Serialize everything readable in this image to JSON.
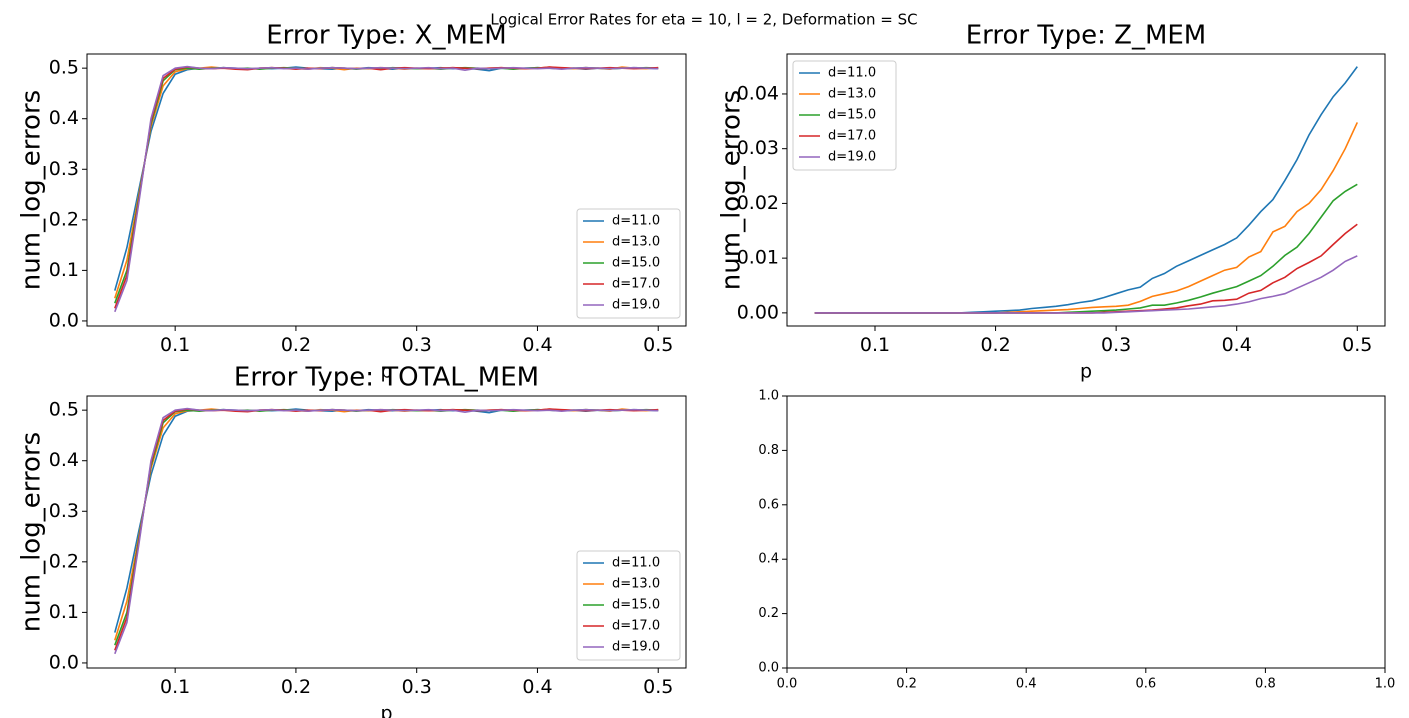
{
  "title": "Logical Error Rates for eta = 10, l = 2, Deformation = SC",
  "chart_data": [
    {
      "type": "line",
      "title": "Error Type: X_MEM",
      "x_label": "p",
      "y_label": "num_log_errors",
      "legend": "lower right",
      "x": [
        0.05,
        0.06,
        0.07,
        0.08,
        0.09,
        0.1,
        0.11,
        0.12,
        0.13,
        0.14,
        0.15,
        0.16,
        0.17,
        0.18,
        0.19,
        0.2,
        0.21,
        0.22,
        0.23,
        0.24,
        0.25,
        0.26,
        0.27,
        0.28,
        0.29,
        0.3,
        0.31,
        0.32,
        0.33,
        0.34,
        0.35,
        0.36,
        0.37,
        0.38,
        0.39,
        0.4,
        0.41,
        0.42,
        0.43,
        0.44,
        0.45,
        0.46,
        0.47,
        0.48,
        0.49,
        0.5
      ],
      "xlim": [
        0.027,
        0.523
      ],
      "ylim": [
        -0.01,
        0.528
      ],
      "xticks": [
        0.1,
        0.2,
        0.3,
        0.4,
        0.5
      ],
      "yticks": [
        {
          "value": 0,
          "label": "0.0"
        },
        0.1,
        0.2,
        0.3,
        0.4,
        0.5
      ],
      "series": [
        {
          "name": "d=11.0",
          "color": "#1f77b4",
          "values": [
            0.06,
            0.145,
            0.26,
            0.375,
            0.45,
            0.488,
            0.497,
            0.5,
            0.499,
            0.501,
            0.5,
            0.498,
            0.5,
            0.499,
            0.5,
            0.502,
            0.5,
            0.499,
            0.498,
            0.5,
            0.499,
            0.501,
            0.5,
            0.498,
            0.5,
            0.499,
            0.5,
            0.501,
            0.499,
            0.5,
            0.498,
            0.495,
            0.5,
            0.499,
            0.5,
            0.501,
            0.5,
            0.499,
            0.5,
            0.498,
            0.5,
            0.499,
            0.5,
            0.501,
            0.5,
            0.499
          ]
        },
        {
          "name": "d=13.0",
          "color": "#ff7f0e",
          "values": [
            0.045,
            0.12,
            0.25,
            0.385,
            0.465,
            0.493,
            0.499,
            0.5,
            0.502,
            0.5,
            0.499,
            0.498,
            0.5,
            0.501,
            0.5,
            0.499,
            0.498,
            0.501,
            0.5,
            0.497,
            0.5,
            0.499,
            0.501,
            0.5,
            0.498,
            0.5,
            0.499,
            0.5,
            0.501,
            0.5,
            0.499,
            0.5,
            0.501,
            0.5,
            0.499,
            0.5,
            0.502,
            0.5,
            0.499,
            0.501,
            0.5,
            0.498,
            0.502,
            0.5,
            0.499,
            0.501
          ]
        },
        {
          "name": "d=15.0",
          "color": "#2ca02c",
          "values": [
            0.035,
            0.1,
            0.245,
            0.39,
            0.475,
            0.497,
            0.5,
            0.498,
            0.5,
            0.501,
            0.499,
            0.5,
            0.498,
            0.5,
            0.501,
            0.5,
            0.499,
            0.5,
            0.501,
            0.5,
            0.498,
            0.5,
            0.499,
            0.501,
            0.5,
            0.499,
            0.5,
            0.498,
            0.5,
            0.501,
            0.5,
            0.499,
            0.5,
            0.498,
            0.5,
            0.501,
            0.5,
            0.499,
            0.5,
            0.501,
            0.5,
            0.499,
            0.5,
            0.5,
            0.501,
            0.5
          ]
        },
        {
          "name": "d=17.0",
          "color": "#d62728",
          "values": [
            0.025,
            0.09,
            0.24,
            0.395,
            0.48,
            0.498,
            0.502,
            0.5,
            0.499,
            0.5,
            0.498,
            0.497,
            0.5,
            0.501,
            0.5,
            0.498,
            0.5,
            0.499,
            0.501,
            0.5,
            0.499,
            0.5,
            0.497,
            0.5,
            0.501,
            0.5,
            0.499,
            0.5,
            0.501,
            0.5,
            0.499,
            0.5,
            0.501,
            0.5,
            0.499,
            0.5,
            0.502,
            0.501,
            0.5,
            0.499,
            0.5,
            0.501,
            0.5,
            0.499,
            0.5,
            0.501
          ]
        },
        {
          "name": "d=19.0",
          "color": "#9467bd",
          "values": [
            0.018,
            0.08,
            0.235,
            0.4,
            0.485,
            0.5,
            0.503,
            0.5,
            0.499,
            0.501,
            0.5,
            0.499,
            0.5,
            0.501,
            0.499,
            0.5,
            0.498,
            0.5,
            0.501,
            0.5,
            0.499,
            0.5,
            0.501,
            0.5,
            0.499,
            0.5,
            0.501,
            0.499,
            0.5,
            0.496,
            0.5,
            0.499,
            0.5,
            0.501,
            0.5,
            0.499,
            0.5,
            0.498,
            0.5,
            0.501,
            0.5,
            0.499,
            0.5,
            0.501,
            0.5,
            0.499
          ]
        }
      ]
    },
    {
      "type": "line",
      "title": "Error Type: Z_MEM",
      "x_label": "p",
      "y_label": "num_log_errors",
      "legend": "upper left",
      "x": [
        0.05,
        0.06,
        0.07,
        0.08,
        0.09,
        0.1,
        0.11,
        0.12,
        0.13,
        0.14,
        0.15,
        0.16,
        0.17,
        0.18,
        0.19,
        0.2,
        0.21,
        0.22,
        0.23,
        0.24,
        0.25,
        0.26,
        0.27,
        0.28,
        0.29,
        0.3,
        0.31,
        0.32,
        0.33,
        0.34,
        0.35,
        0.36,
        0.37,
        0.38,
        0.39,
        0.4,
        0.41,
        0.42,
        0.43,
        0.44,
        0.45,
        0.46,
        0.47,
        0.48,
        0.49,
        0.5
      ],
      "xlim": [
        0.027,
        0.523
      ],
      "ylim": [
        -0.0024,
        0.0473
      ],
      "xticks": [
        0.1,
        0.2,
        0.3,
        0.4,
        0.5
      ],
      "yticks": [
        {
          "value": 0,
          "label": "0.00"
        },
        {
          "value": 0.01,
          "label": "0.01"
        },
        {
          "value": 0.02,
          "label": "0.02"
        },
        {
          "value": 0.03,
          "label": "0.03"
        },
        {
          "value": 0.04,
          "label": "0.04"
        }
      ],
      "series": [
        {
          "name": "d=11.0",
          "color": "#1f77b4",
          "values": [
            0,
            0,
            0,
            0,
            0,
            0,
            0,
            0,
            0,
            0,
            0,
            0,
            0,
            0.0001,
            0.0002,
            0.0003,
            0.0004,
            0.0005,
            0.0008,
            0.001,
            0.0012,
            0.0015,
            0.0019,
            0.0022,
            0.0028,
            0.0035,
            0.0042,
            0.0047,
            0.0063,
            0.0072,
            0.0085,
            0.0095,
            0.0105,
            0.0115,
            0.0125,
            0.0137,
            0.016,
            0.0185,
            0.0207,
            0.0242,
            0.028,
            0.0325,
            0.0362,
            0.0395,
            0.042,
            0.045
          ]
        },
        {
          "name": "d=13.0",
          "color": "#ff7f0e",
          "values": [
            0,
            0,
            0,
            0,
            0,
            0,
            0,
            0,
            0,
            0,
            0,
            0,
            0,
            0,
            0,
            0,
            0.0001,
            0.0002,
            0.0003,
            0.0004,
            0.0005,
            0.0006,
            0.0008,
            0.001,
            0.0011,
            0.0012,
            0.0014,
            0.0021,
            0.003,
            0.0035,
            0.004,
            0.0048,
            0.0058,
            0.0068,
            0.0078,
            0.0083,
            0.0102,
            0.0112,
            0.0148,
            0.0158,
            0.0185,
            0.02,
            0.0225,
            0.026,
            0.03,
            0.0348
          ]
        },
        {
          "name": "d=15.0",
          "color": "#2ca02c",
          "values": [
            0,
            0,
            0,
            0,
            0,
            0,
            0,
            0,
            0,
            0,
            0,
            0,
            0,
            0,
            0,
            0,
            0,
            0,
            0,
            0,
            0,
            0.0001,
            0.0002,
            0.0003,
            0.0004,
            0.0005,
            0.0007,
            0.0009,
            0.0014,
            0.0014,
            0.0018,
            0.0023,
            0.0029,
            0.0036,
            0.0042,
            0.0048,
            0.0058,
            0.0068,
            0.0085,
            0.0105,
            0.012,
            0.0145,
            0.0175,
            0.0205,
            0.0222,
            0.0235
          ]
        },
        {
          "name": "d=17.0",
          "color": "#d62728",
          "values": [
            0,
            0,
            0,
            0,
            0,
            0,
            0,
            0,
            0,
            0,
            0,
            0,
            0,
            0,
            0,
            0,
            0,
            0,
            0,
            0,
            0,
            0,
            0,
            0,
            0.0001,
            0.0002,
            0.0003,
            0.0004,
            0.0005,
            0.0007,
            0.0009,
            0.0013,
            0.0016,
            0.0022,
            0.0023,
            0.0025,
            0.0036,
            0.0041,
            0.0055,
            0.0065,
            0.0081,
            0.0092,
            0.0104,
            0.0125,
            0.0145,
            0.0162
          ]
        },
        {
          "name": "d=19.0",
          "color": "#9467bd",
          "values": [
            0,
            0,
            0,
            0,
            0,
            0,
            0,
            0,
            0,
            0,
            0,
            0,
            0,
            0,
            0,
            0,
            0,
            0,
            0,
            0,
            0,
            0,
            0,
            0,
            0,
            0.0001,
            0.0002,
            0.0003,
            0.0004,
            0.0005,
            0.0006,
            0.0007,
            0.0009,
            0.0011,
            0.0013,
            0.0016,
            0.002,
            0.0026,
            0.003,
            0.0035,
            0.0045,
            0.0055,
            0.0065,
            0.0078,
            0.0094,
            0.0104
          ]
        }
      ]
    },
    {
      "type": "line",
      "title": "Error Type: TOTAL_MEM",
      "x_label": "p",
      "y_label": "num_log_errors",
      "legend": "lower right",
      "x": [
        0.05,
        0.06,
        0.07,
        0.08,
        0.09,
        0.1,
        0.11,
        0.12,
        0.13,
        0.14,
        0.15,
        0.16,
        0.17,
        0.18,
        0.19,
        0.2,
        0.21,
        0.22,
        0.23,
        0.24,
        0.25,
        0.26,
        0.27,
        0.28,
        0.29,
        0.3,
        0.31,
        0.32,
        0.33,
        0.34,
        0.35,
        0.36,
        0.37,
        0.38,
        0.39,
        0.4,
        0.41,
        0.42,
        0.43,
        0.44,
        0.45,
        0.46,
        0.47,
        0.48,
        0.49,
        0.5
      ],
      "xlim": [
        0.027,
        0.523
      ],
      "ylim": [
        -0.01,
        0.528
      ],
      "xticks": [
        0.1,
        0.2,
        0.3,
        0.4,
        0.5
      ],
      "yticks": [
        {
          "value": 0,
          "label": "0.0"
        },
        0.1,
        0.2,
        0.3,
        0.4,
        0.5
      ],
      "series": [
        {
          "name": "d=11.0",
          "color": "#1f77b4",
          "values": [
            0.06,
            0.148,
            0.262,
            0.372,
            0.45,
            0.488,
            0.498,
            0.5,
            0.5,
            0.501,
            0.5,
            0.499,
            0.5,
            0.499,
            0.5,
            0.502,
            0.5,
            0.499,
            0.498,
            0.5,
            0.499,
            0.501,
            0.5,
            0.499,
            0.5,
            0.499,
            0.5,
            0.501,
            0.499,
            0.5,
            0.498,
            0.495,
            0.5,
            0.499,
            0.5,
            0.501,
            0.5,
            0.499,
            0.5,
            0.498,
            0.5,
            0.499,
            0.5,
            0.501,
            0.5,
            0.499
          ]
        },
        {
          "name": "d=13.0",
          "color": "#ff7f0e",
          "values": [
            0.045,
            0.122,
            0.25,
            0.385,
            0.465,
            0.493,
            0.499,
            0.5,
            0.502,
            0.5,
            0.499,
            0.498,
            0.5,
            0.501,
            0.5,
            0.499,
            0.498,
            0.501,
            0.5,
            0.497,
            0.5,
            0.499,
            0.501,
            0.5,
            0.498,
            0.5,
            0.499,
            0.5,
            0.501,
            0.5,
            0.499,
            0.5,
            0.501,
            0.5,
            0.499,
            0.5,
            0.502,
            0.5,
            0.499,
            0.501,
            0.5,
            0.498,
            0.502,
            0.5,
            0.499,
            0.501
          ]
        },
        {
          "name": "d=15.0",
          "color": "#2ca02c",
          "values": [
            0.035,
            0.1,
            0.245,
            0.39,
            0.475,
            0.497,
            0.5,
            0.498,
            0.5,
            0.501,
            0.499,
            0.5,
            0.498,
            0.5,
            0.501,
            0.5,
            0.499,
            0.5,
            0.501,
            0.5,
            0.498,
            0.5,
            0.499,
            0.501,
            0.5,
            0.499,
            0.5,
            0.498,
            0.5,
            0.501,
            0.5,
            0.499,
            0.5,
            0.498,
            0.5,
            0.501,
            0.5,
            0.499,
            0.5,
            0.501,
            0.5,
            0.499,
            0.5,
            0.5,
            0.501,
            0.5
          ]
        },
        {
          "name": "d=17.0",
          "color": "#d62728",
          "values": [
            0.025,
            0.09,
            0.24,
            0.395,
            0.48,
            0.498,
            0.502,
            0.5,
            0.499,
            0.5,
            0.498,
            0.497,
            0.5,
            0.501,
            0.5,
            0.498,
            0.5,
            0.499,
            0.501,
            0.5,
            0.499,
            0.5,
            0.497,
            0.5,
            0.501,
            0.5,
            0.499,
            0.5,
            0.501,
            0.5,
            0.499,
            0.5,
            0.501,
            0.5,
            0.499,
            0.5,
            0.502,
            0.501,
            0.5,
            0.499,
            0.5,
            0.501,
            0.5,
            0.499,
            0.5,
            0.501
          ]
        },
        {
          "name": "d=19.0",
          "color": "#9467bd",
          "values": [
            0.018,
            0.08,
            0.235,
            0.4,
            0.485,
            0.5,
            0.503,
            0.5,
            0.499,
            0.501,
            0.5,
            0.499,
            0.5,
            0.501,
            0.499,
            0.5,
            0.498,
            0.5,
            0.501,
            0.5,
            0.499,
            0.5,
            0.501,
            0.5,
            0.499,
            0.5,
            0.501,
            0.499,
            0.5,
            0.496,
            0.5,
            0.499,
            0.5,
            0.501,
            0.5,
            0.499,
            0.5,
            0.498,
            0.5,
            0.501,
            0.5,
            0.499,
            0.5,
            0.501,
            0.5,
            0.499
          ]
        }
      ]
    },
    {
      "type": "line",
      "xlim": [
        0,
        1
      ],
      "ylim": [
        0,
        1
      ],
      "xticks": [
        {
          "value": 0,
          "label": "0.0"
        },
        0.2,
        0.4,
        0.6,
        0.8,
        {
          "value": 1,
          "label": "1.0"
        }
      ],
      "yticks": [
        {
          "value": 0,
          "label": "0.0"
        },
        0.2,
        0.4,
        0.6,
        0.8,
        {
          "value": 1,
          "label": "1.0"
        }
      ],
      "series": []
    }
  ]
}
